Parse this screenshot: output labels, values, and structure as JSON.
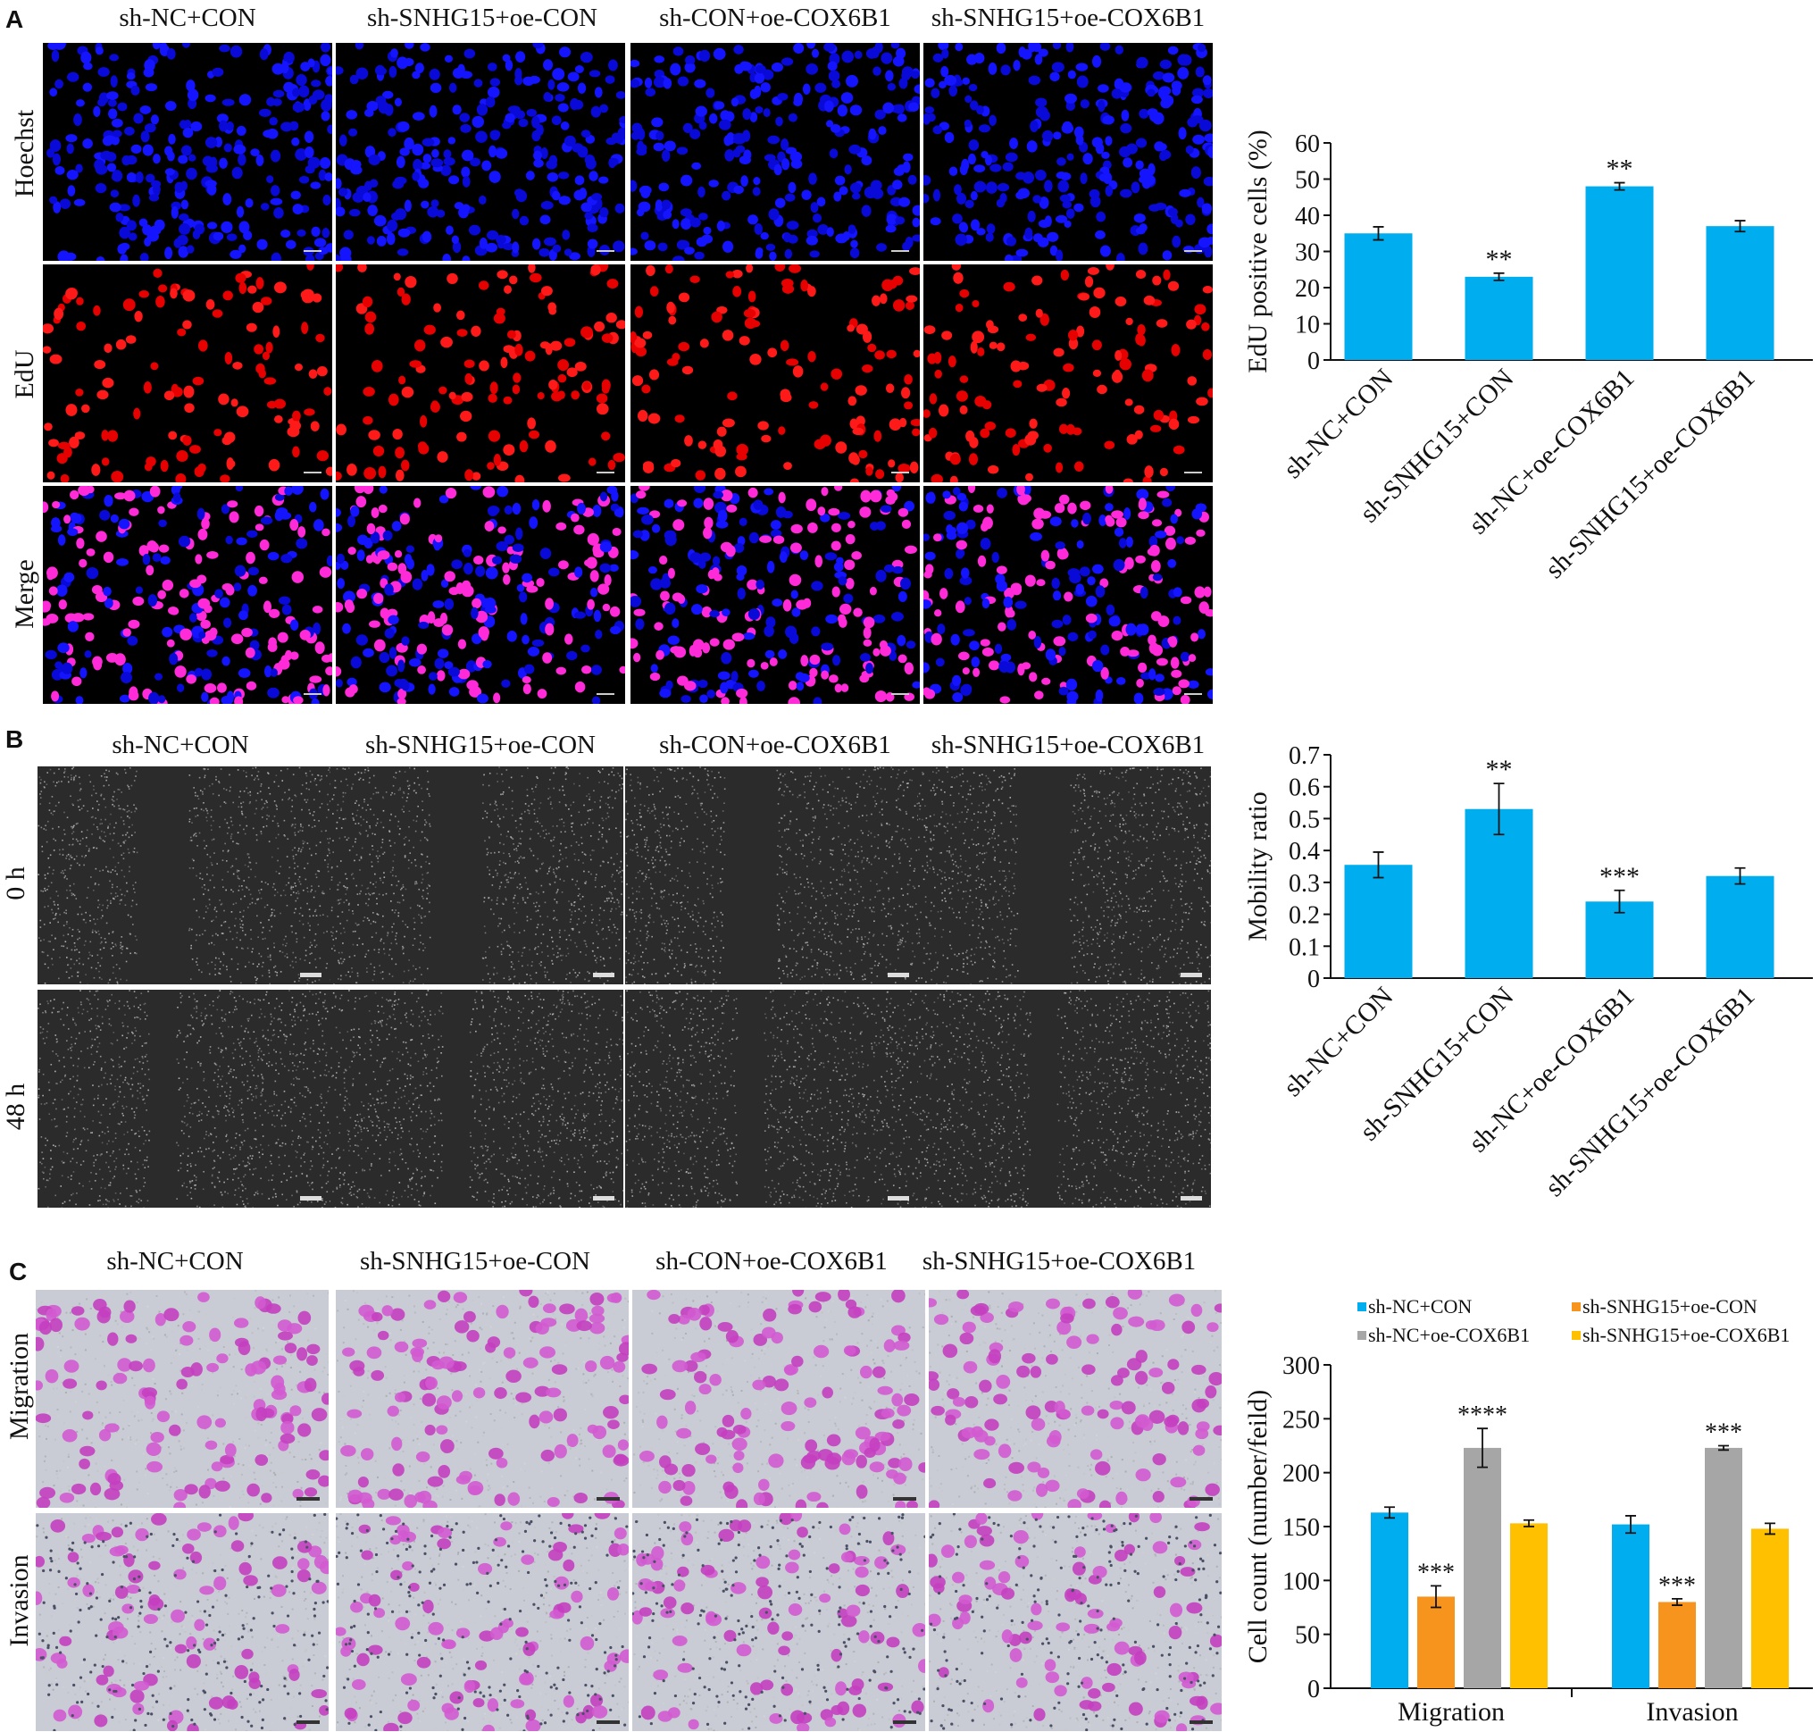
{
  "panels": [
    {
      "letter": "A",
      "columns": [
        "sh-NC+CON",
        "sh-SNHG15+oe-CON",
        "sh-CON+oe-COX6B1",
        "sh-SNHG15+oe-COX6B1"
      ],
      "rows": [
        "Hoechst",
        "EdU",
        "Merge"
      ]
    },
    {
      "letter": "B",
      "columns": [
        "sh-NC+CON",
        "sh-SNHG15+oe-CON",
        "sh-CON+oe-COX6B1",
        "sh-SNHG15+oe-COX6B1"
      ],
      "rows": [
        "0 h",
        "48 h"
      ]
    },
    {
      "letter": "C",
      "columns": [
        "sh-NC+CON",
        "sh-SNHG15+oe-CON",
        "sh-CON+oe-COX6B1",
        "sh-SNHG15+oe-COX6B1"
      ],
      "rows": [
        "Migration",
        "Invasion"
      ]
    }
  ],
  "chart_data": [
    {
      "type": "bar",
      "panel": "A",
      "categories": [
        "sh-NC+CON",
        "sh-SNHG15+CON",
        "sh-NC+oe-COX6B1",
        "sh-SNHG15+oe-COX6B1"
      ],
      "values": [
        35,
        23,
        48,
        37
      ],
      "errors": [
        1.8,
        1.0,
        1.0,
        1.5
      ],
      "significance": [
        "",
        "**",
        "**",
        ""
      ],
      "ylabel": "EdU positive cells (%)",
      "ylim": [
        0,
        60
      ],
      "yticks": [
        0,
        10,
        20,
        30,
        40,
        50,
        60
      ],
      "color": "#00aeef"
    },
    {
      "type": "bar",
      "panel": "B",
      "categories": [
        "sh-NC+CON",
        "sh-SNHG15+CON",
        "sh-NC+oe-COX6B1",
        "sh-SNHG15+oe-COX6B1"
      ],
      "values": [
        0.355,
        0.53,
        0.24,
        0.32
      ],
      "errors": [
        0.04,
        0.08,
        0.035,
        0.025
      ],
      "significance": [
        "",
        "**",
        "***",
        ""
      ],
      "ylabel": "Mobility ratio",
      "ylim": [
        0,
        0.7
      ],
      "yticks": [
        0,
        0.1,
        0.2,
        0.3,
        0.4,
        0.5,
        0.6,
        0.7
      ],
      "color": "#00aeef"
    },
    {
      "type": "bar",
      "panel": "C",
      "categories": [
        "Migration",
        "Invasion"
      ],
      "series": [
        {
          "name": "sh-NC+CON",
          "values": [
            163,
            152
          ],
          "errors": [
            5,
            8
          ],
          "significance": [
            "",
            ""
          ],
          "color": "#00aeef"
        },
        {
          "name": "sh-SNHG15+oe-CON",
          "values": [
            85,
            80
          ],
          "errors": [
            10,
            3
          ],
          "significance": [
            "***",
            "***"
          ],
          "color": "#f7941d"
        },
        {
          "name": "sh-NC+oe-COX6B1",
          "values": [
            223,
            223
          ],
          "errors": [
            18,
            2
          ],
          "significance": [
            "****",
            "***"
          ],
          "color": "#a6a6a6"
        },
        {
          "name": "sh-SNHG15+oe-COX6B1",
          "values": [
            153,
            148
          ],
          "errors": [
            3,
            5
          ],
          "significance": [
            "",
            ""
          ],
          "color": "#ffc000"
        }
      ],
      "ylabel": "Cell count (number/feild)",
      "ylim": [
        0,
        300
      ],
      "yticks": [
        0,
        50,
        100,
        150,
        200,
        250,
        300
      ]
    }
  ]
}
